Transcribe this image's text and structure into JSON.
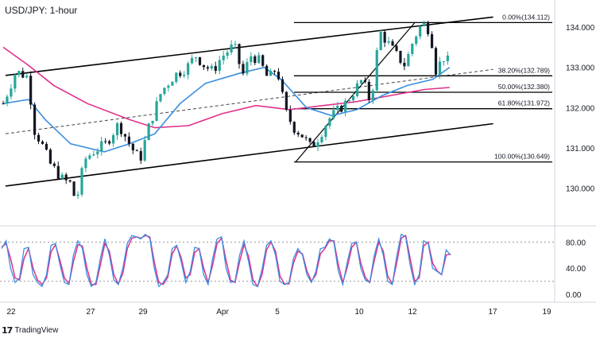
{
  "title": "USD/JPY: 1-hour",
  "watermark": {
    "logo": "17",
    "text": "TradingView"
  },
  "chart_data": {
    "type": "candlestick",
    "price_axis": {
      "range": [
        129.5,
        134.8
      ],
      "ticks": [
        "134.000",
        "133.000",
        "132.000",
        "131.000",
        "130.000"
      ]
    },
    "x_axis": {
      "ticks": [
        "22",
        "27",
        "29",
        "Apr",
        "5",
        "10",
        "12",
        "17",
        "19"
      ]
    },
    "colors": {
      "up": "#26a69a",
      "down": "#131722",
      "ma_fast": "#3b8ee0",
      "ma_slow": "#e0308a",
      "oscillator_k": "#3b8ee0",
      "oscillator_d": "#e0308a",
      "channel": "#000000",
      "fib": "#000000"
    },
    "fibonacci": [
      {
        "ratio": "0.00%",
        "price": 134.112,
        "label": "0.00%(134.112)"
      },
      {
        "ratio": "38.20%",
        "price": 132.789,
        "label": "38.20%(132.789)"
      },
      {
        "ratio": "50.00%",
        "price": 132.38,
        "label": "50.00%(132.380)"
      },
      {
        "ratio": "61.80%",
        "price": 131.972,
        "label": "61.80%(131.972)"
      },
      {
        "ratio": "100.00%",
        "price": 130.649,
        "label": "100.00%(130.649)"
      }
    ],
    "channel": {
      "upper": [
        [
          0,
          132.8
        ],
        [
          118,
          134.25
        ]
      ],
      "lower": [
        [
          0,
          130.05
        ],
        [
          118,
          131.6
        ]
      ],
      "mid": [
        [
          0,
          131.35
        ],
        [
          118,
          132.95
        ]
      ]
    },
    "close_path": [
      [
        0,
        132.1
      ],
      [
        3,
        132.9
      ],
      [
        6,
        132.75
      ],
      [
        7,
        131.5
      ],
      [
        9,
        131.1
      ],
      [
        11,
        130.6
      ],
      [
        14,
        130.2
      ],
      [
        16,
        130.1
      ],
      [
        17,
        129.6
      ],
      [
        19,
        130.7
      ],
      [
        21,
        130.9
      ],
      [
        24,
        131.1
      ],
      [
        27,
        131.6
      ],
      [
        30,
        131.0
      ],
      [
        32,
        130.7
      ],
      [
        34,
        131.5
      ],
      [
        37,
        132.4
      ],
      [
        40,
        132.8
      ],
      [
        43,
        133.0
      ],
      [
        45,
        133.3
      ],
      [
        47,
        133.05
      ],
      [
        49,
        132.9
      ],
      [
        51,
        133.25
      ],
      [
        54,
        133.55
      ],
      [
        56,
        132.8
      ],
      [
        58,
        133.3
      ],
      [
        60,
        133.15
      ],
      [
        62,
        132.7
      ],
      [
        64,
        133.0
      ],
      [
        66,
        131.9
      ],
      [
        68,
        131.5
      ],
      [
        70,
        131.3
      ],
      [
        72,
        131.0
      ],
      [
        74,
        131.3
      ],
      [
        76,
        131.7
      ],
      [
        78,
        131.9
      ],
      [
        80,
        132.1
      ],
      [
        82,
        132.4
      ],
      [
        84,
        132.7
      ],
      [
        86,
        132.1
      ],
      [
        88,
        133.9
      ],
      [
        90,
        133.6
      ],
      [
        92,
        133.3
      ],
      [
        94,
        133.05
      ],
      [
        96,
        133.7
      ],
      [
        98,
        134.1
      ],
      [
        100,
        133.9
      ],
      [
        101,
        132.9
      ],
      [
        103,
        133.25
      ],
      [
        105,
        133.05
      ]
    ],
    "ma_fast": [
      [
        0,
        132.1
      ],
      [
        6,
        132.2
      ],
      [
        10,
        131.7
      ],
      [
        16,
        131.1
      ],
      [
        24,
        130.9
      ],
      [
        30,
        131.1
      ],
      [
        36,
        131.35
      ],
      [
        42,
        132.1
      ],
      [
        48,
        132.6
      ],
      [
        56,
        132.85
      ],
      [
        62,
        133.0
      ],
      [
        66,
        132.7
      ],
      [
        72,
        132.0
      ],
      [
        78,
        131.8
      ],
      [
        84,
        131.95
      ],
      [
        90,
        132.3
      ],
      [
        96,
        132.55
      ],
      [
        102,
        132.7
      ],
      [
        106,
        133.0
      ]
    ],
    "ma_slow": [
      [
        0,
        133.5
      ],
      [
        6,
        133.05
      ],
      [
        12,
        132.55
      ],
      [
        20,
        132.1
      ],
      [
        30,
        131.7
      ],
      [
        36,
        131.5
      ],
      [
        44,
        131.55
      ],
      [
        52,
        131.85
      ],
      [
        60,
        132.05
      ],
      [
        68,
        131.95
      ],
      [
        76,
        132.05
      ],
      [
        84,
        132.15
      ],
      [
        92,
        132.3
      ],
      [
        100,
        132.45
      ],
      [
        106,
        132.5
      ]
    ],
    "oscillator": {
      "range": [
        0,
        100
      ],
      "ticks": [
        "80.00",
        "40.00",
        "0.00"
      ],
      "levels": [
        80,
        20
      ],
      "k": [
        70,
        82,
        40,
        18,
        25,
        70,
        72,
        30,
        18,
        12,
        30,
        75,
        78,
        45,
        18,
        15,
        60,
        82,
        70,
        30,
        12,
        18,
        55,
        85,
        60,
        22,
        15,
        40,
        78,
        90,
        88,
        85,
        92,
        86,
        40,
        12,
        18,
        30,
        70,
        75,
        50,
        18,
        35,
        72,
        70,
        30,
        15,
        55,
        85,
        88,
        40,
        18,
        20,
        60,
        82,
        50,
        15,
        12,
        38,
        75,
        82,
        60,
        20,
        15,
        18,
        55,
        70,
        60,
        30,
        18,
        35,
        70,
        72,
        85,
        80,
        35,
        15,
        50,
        78,
        80,
        40,
        22,
        18,
        60,
        85,
        60,
        20,
        15,
        58,
        92,
        88,
        45,
        15,
        30,
        82,
        78,
        40,
        35,
        30,
        68,
        60
      ],
      "d": [
        72,
        78,
        55,
        25,
        22,
        55,
        70,
        40,
        22,
        15,
        25,
        65,
        76,
        52,
        25,
        16,
        50,
        76,
        74,
        40,
        15,
        15,
        45,
        78,
        66,
        30,
        16,
        32,
        70,
        86,
        88,
        86,
        90,
        88,
        50,
        18,
        15,
        26,
        62,
        74,
        56,
        25,
        30,
        64,
        70,
        40,
        18,
        45,
        78,
        86,
        52,
        22,
        18,
        50,
        76,
        58,
        22,
        12,
        30,
        68,
        80,
        66,
        28,
        16,
        16,
        48,
        66,
        62,
        36,
        20,
        30,
        62,
        70,
        82,
        82,
        45,
        18,
        42,
        72,
        80,
        48,
        26,
        18,
        52,
        80,
        66,
        28,
        16,
        48,
        86,
        90,
        55,
        20,
        25,
        74,
        80,
        48,
        36,
        30,
        60,
        62
      ]
    }
  }
}
